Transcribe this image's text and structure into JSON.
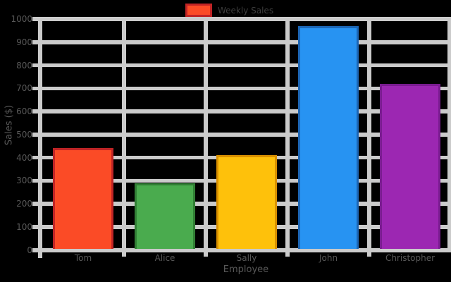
{
  "figure": {
    "background": "#000000",
    "grid_color": "#cbcbcb",
    "tick_text_color": "#585858",
    "legend_text_color": "#3e3e3e",
    "legend": {
      "label": "Weekly Sales",
      "swatch_fill": "#fb4b26",
      "swatch_edge": "#c02425"
    }
  },
  "chart_data": {
    "type": "bar",
    "title": "",
    "xlabel": "Employee",
    "ylabel": "Sales ($)",
    "categories": [
      "Tom",
      "Alice",
      "Sally",
      "John",
      "Christopher"
    ],
    "values": [
      440,
      290,
      410,
      970,
      720
    ],
    "bar_fill_colors": [
      "#fb4b26",
      "#4aab4e",
      "#fec10b",
      "#2793f2",
      "#9c27b2"
    ],
    "bar_edge_colors": [
      "#c02425",
      "#317f35",
      "#d99000",
      "#1c66b5",
      "#7a1c90"
    ],
    "ylim": [
      0,
      1000
    ],
    "yticks": [
      0,
      100,
      200,
      300,
      400,
      500,
      600,
      700,
      800,
      900,
      1000
    ],
    "grid": "on",
    "legend_entries": [
      "Weekly Sales"
    ],
    "legend_position": "upper center, outside plot"
  }
}
